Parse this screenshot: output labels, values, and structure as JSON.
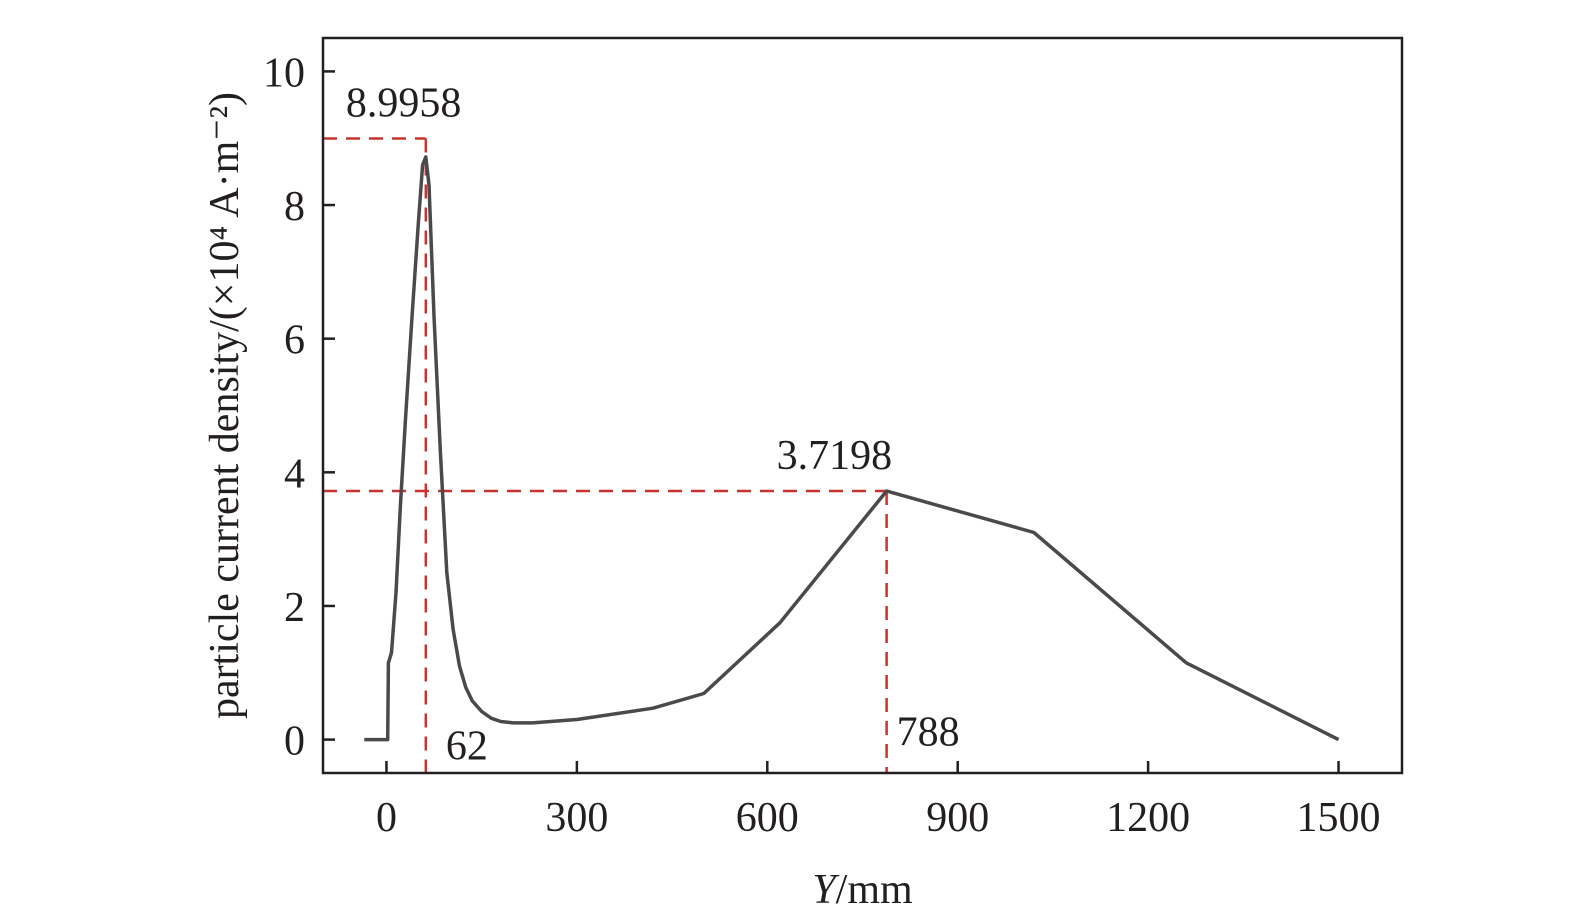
{
  "chart_data": {
    "type": "line",
    "xlabel_italic": "Y",
    "xlabel_rest": "/mm",
    "ylabel": "particle current density/(×10⁴ A·m⁻²)",
    "xlim": [
      -100,
      1600
    ],
    "ylim": [
      -0.5,
      10.5
    ],
    "xticks": [
      0,
      300,
      600,
      900,
      1200,
      1500
    ],
    "yticks": [
      0,
      2,
      4,
      6,
      8,
      10
    ],
    "grid": false,
    "series": [
      {
        "color": "#4a4a4c",
        "x": [
          -35,
          2,
          3,
          8,
          15,
          22,
          30,
          40,
          50,
          57,
          62,
          67,
          75,
          85,
          95,
          105,
          115,
          125,
          135,
          150,
          165,
          180,
          200,
          230,
          300,
          420,
          500,
          620,
          788,
          1020,
          1260,
          1500
        ],
        "y": [
          0,
          0,
          1.15,
          1.3,
          2.2,
          3.5,
          4.8,
          6.3,
          7.7,
          8.6,
          8.72,
          8.3,
          6.3,
          4.3,
          2.5,
          1.65,
          1.1,
          0.78,
          0.58,
          0.42,
          0.32,
          0.27,
          0.25,
          0.25,
          0.3,
          0.47,
          0.69,
          1.75,
          3.72,
          3.1,
          1.15,
          0
        ]
      }
    ],
    "annotations": [
      {
        "text": "8.9958",
        "x": 62,
        "y": 8.9958
      },
      {
        "text": "62",
        "x": 62,
        "y": 0
      },
      {
        "text": "3.7198",
        "x": 788,
        "y": 3.7198
      },
      {
        "text": "788",
        "x": 788,
        "y": 0
      }
    ],
    "guide_color": "#c8332f"
  }
}
